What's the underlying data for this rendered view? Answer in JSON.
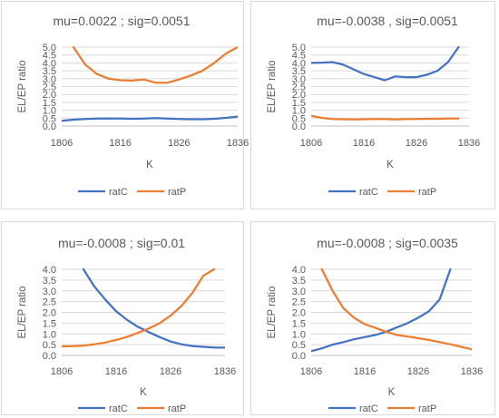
{
  "chart_data": [
    {
      "type": "line",
      "title": "mu=0.0022 ; sig=0.0051",
      "xlabel": "K",
      "ylabel": "EL/EP ratio",
      "x": [
        1806,
        1808,
        1810,
        1812,
        1814,
        1816,
        1818,
        1820,
        1822,
        1824,
        1826,
        1828,
        1830,
        1832,
        1834,
        1836
      ],
      "xticks": [
        "1806",
        "1816",
        "1826",
        "1836"
      ],
      "yticks": [
        "0.0",
        "0.5",
        "1.0",
        "1.5",
        "2.0",
        "2.5",
        "3.0",
        "3.5",
        "4.0",
        "4.5",
        "5.0"
      ],
      "ylim": [
        0,
        5
      ],
      "xlim": [
        1806,
        1836
      ],
      "grid": true,
      "legend": "bottom",
      "series": [
        {
          "name": "ratC",
          "color": "#4472c4",
          "values": [
            0.33,
            0.4,
            0.45,
            0.47,
            0.48,
            0.47,
            0.46,
            0.47,
            0.5,
            0.47,
            0.45,
            0.43,
            0.43,
            0.46,
            0.52,
            0.6
          ]
        },
        {
          "name": "ratP",
          "color": "#ed7d31",
          "values": [
            null,
            5.0,
            3.9,
            3.3,
            3.0,
            2.9,
            2.88,
            2.95,
            2.75,
            2.75,
            2.95,
            3.2,
            3.5,
            4.0,
            4.6,
            5.0
          ]
        }
      ]
    },
    {
      "type": "line",
      "title": "mu=-0.0038 , sig=0.0051",
      "xlabel": "K",
      "ylabel": "EL/EP ratio",
      "x": [
        1806,
        1808,
        1810,
        1812,
        1814,
        1816,
        1818,
        1820,
        1822,
        1824,
        1826,
        1828,
        1830,
        1832,
        1834
      ],
      "xticks": [
        "1806",
        "1816",
        "1826",
        "1836"
      ],
      "yticks": [
        "0.0",
        "0.5",
        "1.0",
        "1.5",
        "2.0",
        "2.5",
        "3.0",
        "3.5",
        "4.0",
        "4.5",
        "5.0"
      ],
      "ylim": [
        0,
        5
      ],
      "xlim": [
        1806,
        1836
      ],
      "grid": true,
      "legend": "bottom",
      "series": [
        {
          "name": "ratC",
          "color": "#4472c4",
          "values": [
            4.0,
            4.02,
            4.05,
            3.9,
            3.6,
            3.3,
            3.1,
            2.9,
            3.15,
            3.1,
            3.1,
            3.25,
            3.5,
            4.05,
            5.0
          ]
        },
        {
          "name": "ratP",
          "color": "#ed7d31",
          "values": [
            0.65,
            0.52,
            0.45,
            0.43,
            0.42,
            0.43,
            0.44,
            0.45,
            0.42,
            0.44,
            0.45,
            0.46,
            0.46,
            0.47,
            0.48
          ]
        }
      ]
    },
    {
      "type": "line",
      "title": "mu=-0.0008 ; sig=0.01",
      "xlabel": "K",
      "ylabel": "EL/EP ratio",
      "x": [
        1806,
        1808,
        1810,
        1812,
        1814,
        1816,
        1818,
        1820,
        1822,
        1824,
        1826,
        1828,
        1830,
        1832,
        1834,
        1836
      ],
      "xticks": [
        "1806",
        "1816",
        "1826",
        "1836"
      ],
      "yticks": [
        "0.0",
        "0.5",
        "1.0",
        "1.5",
        "2.0",
        "2.5",
        "3.0",
        "3.5",
        "4.0"
      ],
      "ylim": [
        0,
        4
      ],
      "xlim": [
        1806,
        1836
      ],
      "grid": true,
      "legend": "bottom",
      "series": [
        {
          "name": "ratC",
          "color": "#4472c4",
          "values": [
            null,
            null,
            4.0,
            3.2,
            2.6,
            2.05,
            1.65,
            1.33,
            1.08,
            0.85,
            0.65,
            0.52,
            0.44,
            0.4,
            0.37,
            0.36
          ]
        },
        {
          "name": "ratP",
          "color": "#ed7d31",
          "values": [
            0.42,
            0.43,
            0.46,
            0.52,
            0.6,
            0.72,
            0.86,
            1.05,
            1.25,
            1.5,
            1.85,
            2.3,
            2.9,
            3.7,
            4.0,
            null
          ]
        }
      ]
    },
    {
      "type": "line",
      "title": "mu=-0.0008 ; sig=0.0035",
      "xlabel": "K",
      "ylabel": "EL/EP ratio",
      "x": [
        1806,
        1808,
        1810,
        1812,
        1814,
        1816,
        1818,
        1820,
        1822,
        1824,
        1826,
        1828,
        1830,
        1832,
        1834,
        1836
      ],
      "xticks": [
        "1806",
        "1816",
        "1826",
        "1836"
      ],
      "yticks": [
        "0.0",
        "0.5",
        "1.0",
        "1.5",
        "2.0",
        "2.5",
        "3.0",
        "3.5",
        "4.0"
      ],
      "ylim": [
        0,
        4
      ],
      "xlim": [
        1806,
        1836
      ],
      "grid": true,
      "legend": "bottom",
      "series": [
        {
          "name": "ratC",
          "color": "#4472c4",
          "values": [
            0.2,
            0.33,
            0.5,
            0.62,
            0.75,
            0.85,
            0.95,
            1.1,
            1.3,
            1.5,
            1.75,
            2.05,
            2.6,
            4.0,
            null,
            null
          ]
        },
        {
          "name": "ratP",
          "color": "#ed7d31",
          "values": [
            null,
            4.0,
            3.0,
            2.2,
            1.75,
            1.45,
            1.28,
            1.1,
            0.95,
            0.88,
            0.8,
            0.72,
            0.62,
            0.52,
            0.4,
            0.28
          ]
        }
      ]
    }
  ]
}
